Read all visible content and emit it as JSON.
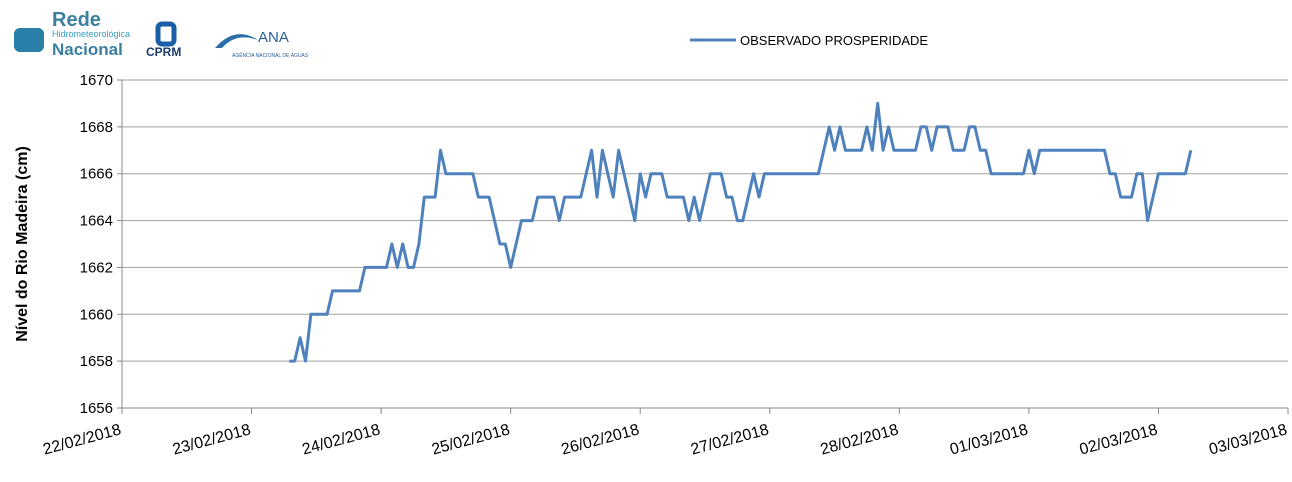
{
  "logos": {
    "rede": "Rede",
    "rede_sub": "Hidrometeorológica",
    "rede_nacional": "Nacional",
    "cprm": "CPRM",
    "ana": "ANA",
    "ana_sub": "AGÊNCIA NACIONAL DE ÁGUAS"
  },
  "chart_data": {
    "type": "line",
    "y_label": "Nível do Rio Madeira (cm)",
    "legend": "top",
    "grid": true,
    "xlim": [
      "2018-02-22",
      "2018-03-03"
    ],
    "xticks": [
      {
        "value": "2018-02-22",
        "label": "22/02/2018"
      },
      {
        "value": "2018-02-23",
        "label": "23/02/2018"
      },
      {
        "value": "2018-02-24",
        "label": "24/02/2018"
      },
      {
        "value": "2018-02-25",
        "label": "25/02/2018"
      },
      {
        "value": "2018-02-26",
        "label": "26/02/2018"
      },
      {
        "value": "2018-02-27",
        "label": "27/02/2018"
      },
      {
        "value": "2018-02-28",
        "label": "28/02/2018"
      },
      {
        "value": "2018-03-01",
        "label": "01/03/2018"
      },
      {
        "value": "2018-03-02",
        "label": "02/03/2018"
      },
      {
        "value": "2018-03-03",
        "label": "03/03/2018"
      }
    ],
    "ylim": [
      1656,
      1670
    ],
    "yticks": [
      1656,
      1658,
      1660,
      1662,
      1664,
      1666,
      1668,
      1670
    ],
    "x": [
      "2018-02-23T07:00",
      "2018-02-23T08:00",
      "2018-02-23T09:00",
      "2018-02-23T10:00",
      "2018-02-23T11:00",
      "2018-02-23T14:00",
      "2018-02-23T15:00",
      "2018-02-23T20:00",
      "2018-02-23T21:00",
      "2018-02-24T01:00",
      "2018-02-24T02:00",
      "2018-02-24T03:00",
      "2018-02-24T04:00",
      "2018-02-24T05:00",
      "2018-02-24T06:00",
      "2018-02-24T07:00",
      "2018-02-24T08:00",
      "2018-02-24T10:00",
      "2018-02-24T11:00",
      "2018-02-24T12:00",
      "2018-02-24T17:00",
      "2018-02-24T18:00",
      "2018-02-24T20:00",
      "2018-02-24T22:00",
      "2018-02-24T23:00",
      "2018-02-25T00:00",
      "2018-02-25T02:00",
      "2018-02-25T04:00",
      "2018-02-25T05:00",
      "2018-02-25T08:00",
      "2018-02-25T09:00",
      "2018-02-25T10:00",
      "2018-02-25T13:00",
      "2018-02-25T15:00",
      "2018-02-25T16:00",
      "2018-02-25T17:00",
      "2018-02-25T19:00",
      "2018-02-25T20:00",
      "2018-02-25T23:00",
      "2018-02-26T00:00",
      "2018-02-26T01:00",
      "2018-02-26T02:00",
      "2018-02-26T04:00",
      "2018-02-26T05:00",
      "2018-02-26T08:00",
      "2018-02-26T09:00",
      "2018-02-26T10:00",
      "2018-02-26T11:00",
      "2018-02-26T13:00",
      "2018-02-26T15:00",
      "2018-02-26T16:00",
      "2018-02-26T17:00",
      "2018-02-26T18:00",
      "2018-02-26T19:00",
      "2018-02-26T21:00",
      "2018-02-26T22:00",
      "2018-02-26T23:00",
      "2018-02-27T09:00",
      "2018-02-27T11:00",
      "2018-02-27T12:00",
      "2018-02-27T13:00",
      "2018-02-27T14:00",
      "2018-02-27T17:00",
      "2018-02-27T18:00",
      "2018-02-27T19:00",
      "2018-02-27T20:00",
      "2018-02-27T21:00",
      "2018-02-27T22:00",
      "2018-02-27T23:00",
      "2018-02-28T03:00",
      "2018-02-28T04:00",
      "2018-02-28T05:00",
      "2018-02-28T06:00",
      "2018-02-28T07:00",
      "2018-02-28T09:00",
      "2018-02-28T10:00",
      "2018-02-28T12:00",
      "2018-02-28T13:00",
      "2018-02-28T14:00",
      "2018-02-28T15:00",
      "2018-02-28T16:00",
      "2018-02-28T17:00",
      "2018-02-28T22:00",
      "2018-02-28T23:00",
      "2018-03-01T00:00",
      "2018-03-01T01:00",
      "2018-03-01T02:00",
      "2018-03-01T14:00",
      "2018-03-01T15:00",
      "2018-03-01T16:00",
      "2018-03-01T17:00",
      "2018-03-01T19:00",
      "2018-03-01T20:00",
      "2018-03-01T21:00",
      "2018-03-01T22:00",
      "2018-03-02T00:00",
      "2018-03-02T05:00",
      "2018-03-02T06:00"
    ],
    "series": [
      {
        "name": "OBSERVADO PROSPERIDADE",
        "color": "#4f81bd",
        "values": [
          1658,
          1658,
          1659,
          1658,
          1660,
          1660,
          1661,
          1661,
          1662,
          1662,
          1663,
          1662,
          1663,
          1662,
          1662,
          1663,
          1665,
          1665,
          1667,
          1666,
          1666,
          1665,
          1665,
          1663,
          1663,
          1662,
          1664,
          1664,
          1665,
          1665,
          1664,
          1665,
          1665,
          1667,
          1665,
          1667,
          1665,
          1667,
          1664,
          1666,
          1665,
          1666,
          1666,
          1665,
          1665,
          1664,
          1665,
          1664,
          1666,
          1666,
          1665,
          1665,
          1664,
          1664,
          1666,
          1665,
          1666,
          1666,
          1668,
          1667,
          1668,
          1667,
          1667,
          1668,
          1667,
          1669,
          1667,
          1668,
          1667,
          1667,
          1668,
          1668,
          1667,
          1668,
          1668,
          1667,
          1667,
          1668,
          1668,
          1667,
          1667,
          1666,
          1666,
          1666,
          1667,
          1666,
          1667,
          1667,
          1666,
          1666,
          1665,
          1665,
          1666,
          1666,
          1664,
          1666,
          1666,
          1667
        ]
      }
    ]
  }
}
